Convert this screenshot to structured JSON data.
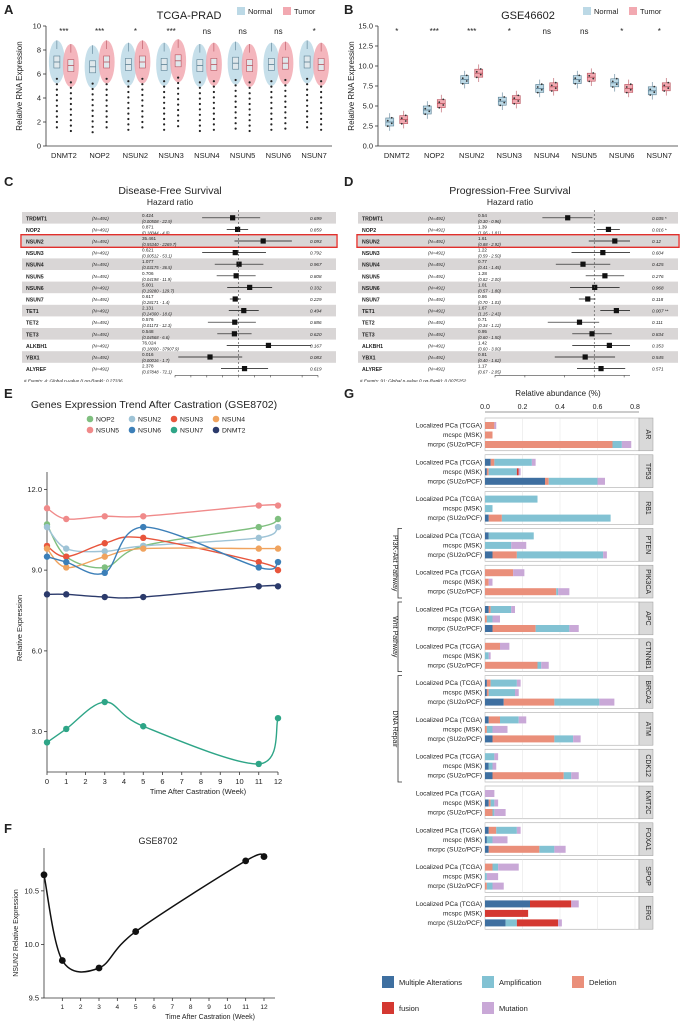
{
  "panel_labels": {
    "a": "A",
    "b": "B",
    "c": "C",
    "d": "D",
    "e": "E",
    "f": "F",
    "g": "G"
  },
  "chart_data": [
    {
      "id": "A",
      "type": "box",
      "title": "TCGA-PRAD",
      "ylabel": "Relative RNA Expression",
      "ylim": [
        0,
        10
      ],
      "yticks": [
        0,
        2,
        4,
        6,
        8,
        10
      ],
      "legend": [
        "Normal",
        "Tumor"
      ],
      "categories": [
        "DNMT2",
        "NOP2",
        "NSUN2",
        "NSUN3",
        "NSUN4",
        "NSUN5",
        "NSUN6",
        "NSUN7"
      ],
      "significance": [
        "***",
        "***",
        "*",
        "***",
        "ns",
        "ns",
        "ns",
        "*"
      ],
      "series": [
        {
          "name": "Normal",
          "medians": [
            7.0,
            6.6,
            6.8,
            6.8,
            6.7,
            6.9,
            6.8,
            7.0
          ]
        },
        {
          "name": "Tumor",
          "medians": [
            6.7,
            7.0,
            7.0,
            7.1,
            6.8,
            6.7,
            6.9,
            6.8
          ]
        }
      ]
    },
    {
      "id": "B",
      "type": "box",
      "title": "GSE46602",
      "ylabel": "Relative RNA Expression",
      "ylim": [
        0,
        15
      ],
      "yticks": [
        "0.0",
        "2.5",
        "5.0",
        "7.5",
        "10.0",
        "12.5",
        "15.0"
      ],
      "legend": [
        "Normal",
        "Tumor"
      ],
      "categories": [
        "DNMT2",
        "NOP2",
        "NSUN2",
        "NSUN3",
        "NSUN4",
        "NSUN5",
        "NSUN6",
        "NSUN7"
      ],
      "significance": [
        "*",
        "***",
        "***",
        "*",
        "ns",
        "ns",
        "*",
        "*"
      ],
      "series": [
        {
          "name": "Normal",
          "medians": [
            3.0,
            4.5,
            8.3,
            5.6,
            7.2,
            8.3,
            7.9,
            6.9
          ]
        },
        {
          "name": "Tumor",
          "medians": [
            3.3,
            5.3,
            9.1,
            5.8,
            7.4,
            8.6,
            7.2,
            7.4
          ]
        }
      ]
    },
    {
      "id": "C",
      "type": "forest",
      "title": "Disease-Free Survival",
      "subtitle": "Hazard ratio",
      "xscale": "log",
      "xticks": [
        "0.0001",
        "0.001",
        "0.01",
        "0.1",
        "1",
        "10",
        "100",
        "10000",
        "100000"
      ],
      "rows": [
        {
          "gene": "TRDMT1",
          "n": "(N=491)",
          "hr": "0.424",
          "ci": "(0.00508 - 22.9)",
          "p": "0.699",
          "est": 0.424
        },
        {
          "gene": "NOP2",
          "n": "(N=491)",
          "hr": "0.871",
          "ci": "(0.18044 - 4.0)",
          "p": "0.859",
          "est": 0.871
        },
        {
          "gene": "NSUN2",
          "n": "(N=491)",
          "hr": "35.461",
          "ci": "(0.55340 - 2269.7)",
          "p": "0.093",
          "est": 35.461
        },
        {
          "gene": "NSUN3",
          "n": "(N=491)",
          "hr": "0.621",
          "ci": "(0.00512 - 53.1)",
          "p": "0.792",
          "est": 0.621
        },
        {
          "gene": "NSUN4",
          "n": "(N=491)",
          "hr": "1.077",
          "ci": "(0.03175 - 36.5)",
          "p": "0.967",
          "est": 1.077
        },
        {
          "gene": "NSUN5",
          "n": "(N=491)",
          "hr": "0.706",
          "ci": "(0.04198 - 11.9)",
          "p": "0.808",
          "est": 0.706
        },
        {
          "gene": "NSUN6",
          "n": "(N=491)",
          "hr": "5.001",
          "ci": "(0.19280 - 129.7)",
          "p": "0.332",
          "est": 5.001
        },
        {
          "gene": "NSUN7",
          "n": "(N=491)",
          "hr": "0.617",
          "ci": "(0.28171 - 1.4)",
          "p": "0.229",
          "est": 0.617
        },
        {
          "gene": "TET1",
          "n": "(N=491)",
          "hr": "2.131",
          "ci": "(0.24300 - 18.6)",
          "p": "0.494",
          "est": 2.131
        },
        {
          "gene": "TET2",
          "n": "(N=491)",
          "hr": "0.576",
          "ci": "(0.01173 - 12.3)",
          "p": "0.886",
          "est": 0.576
        },
        {
          "gene": "TET3",
          "n": "(N=491)",
          "hr": "0.548",
          "ci": "(0.04568 - 6.6)",
          "p": "0.620",
          "est": 0.548
        },
        {
          "gene": "ALKBH1",
          "n": "(N=491)",
          "hr": "76.024",
          "ci": "(0.18000 - 37907.9)",
          "p": "0.167",
          "est": 76.024
        },
        {
          "gene": "YBX1",
          "n": "(N=491)",
          "hr": "0.016",
          "ci": "(0.00016 - 1.7)",
          "p": "0.083",
          "est": 0.016
        },
        {
          "gene": "ALYREF",
          "n": "(N=491)",
          "hr": "2.378",
          "ci": "(0.07848 - 72.1)",
          "p": "0.619",
          "est": 2.378
        }
      ],
      "footnote1": "# Events: 4; Global p-value (Log-Rank): 0.27336",
      "footnote2": "AIC: 53.62; Concordance Index: 0.82"
    },
    {
      "id": "D",
      "type": "forest",
      "title": "Progression-Free Survival",
      "subtitle": "Hazard ratio",
      "xscale": "log",
      "xticks": [
        "0.1",
        "0.2",
        "0.5",
        "1",
        "2"
      ],
      "rows": [
        {
          "gene": "TRDMT1",
          "n": "(N=491)",
          "hr": "0.54",
          "ci": "(0.30 - 0.96)",
          "p": "0.035 *",
          "est": 0.54
        },
        {
          "gene": "NOP2",
          "n": "(N=491)",
          "hr": "1.39",
          "ci": "(1.06 - 1.81)",
          "p": "0.016 *",
          "est": 1.39
        },
        {
          "gene": "NSUN2",
          "n": "(N=491)",
          "hr": "1.61",
          "ci": "(0.88 - 2.92)",
          "p": "0.12",
          "est": 1.61
        },
        {
          "gene": "NSUN3",
          "n": "(N=491)",
          "hr": "1.22",
          "ci": "(0.59 - 2.50)",
          "p": "0.604",
          "est": 1.22
        },
        {
          "gene": "NSUN4",
          "n": "(N=491)",
          "hr": "0.77",
          "ci": "(0.41 - 1.45)",
          "p": "0.425",
          "est": 0.77
        },
        {
          "gene": "NSUN5",
          "n": "(N=491)",
          "hr": "1.28",
          "ci": "(0.82 - 2.00)",
          "p": "0.276",
          "est": 1.28
        },
        {
          "gene": "NSUN6",
          "n": "(N=491)",
          "hr": "1.01",
          "ci": "(0.57 - 1.80)",
          "p": "0.968",
          "est": 1.01
        },
        {
          "gene": "NSUN7",
          "n": "(N=491)",
          "hr": "0.86",
          "ci": "(0.70 - 1.03)",
          "p": "0.118",
          "est": 0.86
        },
        {
          "gene": "TET1",
          "n": "(N=491)",
          "hr": "1.67",
          "ci": "(1.15 - 2.43)",
          "p": "0.007 **",
          "est": 1.67
        },
        {
          "gene": "TET2",
          "n": "(N=491)",
          "hr": "0.71",
          "ci": "(0.34 - 1.12)",
          "p": "0.111",
          "est": 0.71
        },
        {
          "gene": "TET3",
          "n": "(N=491)",
          "hr": "0.95",
          "ci": "(0.60 - 1.50)",
          "p": "0.834",
          "est": 0.95
        },
        {
          "gene": "ALKBH1",
          "n": "(N=491)",
          "hr": "1.42",
          "ci": "(0.60 - 3.00)",
          "p": "0.353",
          "est": 1.42
        },
        {
          "gene": "YBX1",
          "n": "(N=491)",
          "hr": "0.81",
          "ci": "(0.40 - 1.62)",
          "p": "0.545",
          "est": 0.81
        },
        {
          "gene": "ALYREF",
          "n": "(N=491)",
          "hr": "1.17",
          "ci": "(0.67 - 2.05)",
          "p": "0.571",
          "est": 1.17
        }
      ],
      "footnote1": "# Events: 91; Global p-value (Log-Rank): 0.0075252",
      "footnote2": "AIC: 998.43; Concordance Index: 0.67"
    },
    {
      "id": "E",
      "type": "line",
      "title": "Genes Expression Trend After Castration (GSE8702)",
      "xlabel": "Time After Castration (Week)",
      "ylabel": "Relative Expression",
      "x": [
        0,
        1,
        3,
        5,
        11,
        12
      ],
      "xticks": [
        "0",
        "1",
        "2",
        "3",
        "4",
        "5",
        "6",
        "7",
        "8",
        "9",
        "10",
        "11",
        "12"
      ],
      "yticks": [
        "3.0",
        "6.0",
        "9.0",
        "12.0"
      ],
      "ylim": [
        1.5,
        12.2
      ],
      "series": [
        {
          "name": "NOP2",
          "color": "#7fbf7f",
          "values": [
            10.7,
            9.5,
            9.1,
            9.9,
            10.6,
            10.9
          ]
        },
        {
          "name": "NSUN2",
          "color": "#9ec3d6",
          "values": [
            10.6,
            9.8,
            9.7,
            9.9,
            10.2,
            10.6
          ]
        },
        {
          "name": "NSUN3",
          "color": "#e8553c",
          "values": [
            9.9,
            9.5,
            10.0,
            10.2,
            9.3,
            9.0
          ]
        },
        {
          "name": "NSUN4",
          "color": "#f0a35e",
          "values": [
            9.8,
            9.1,
            9.5,
            9.8,
            9.8,
            9.8
          ]
        },
        {
          "name": "NSUN5",
          "color": "#f08a8a",
          "values": [
            11.3,
            10.9,
            11.0,
            11.0,
            11.4,
            11.4
          ]
        },
        {
          "name": "NSUN6",
          "color": "#3c7fb8",
          "values": [
            9.5,
            9.3,
            8.9,
            10.6,
            9.1,
            9.3
          ]
        },
        {
          "name": "NSUN7",
          "color": "#2ea587",
          "values": [
            2.6,
            3.1,
            4.1,
            3.2,
            1.8,
            3.5
          ]
        },
        {
          "name": "DNMT2",
          "color": "#2b3a6b",
          "values": [
            8.1,
            8.1,
            8.0,
            8.0,
            8.4,
            8.4
          ]
        }
      ]
    },
    {
      "id": "F",
      "type": "line",
      "title": "GSE8702",
      "xlabel": "Time After Castration (Week)",
      "ylabel": "NSUN2 Relative Expression",
      "x": [
        0,
        1,
        3,
        5,
        11,
        12
      ],
      "xticks": [
        "1",
        "2",
        "3",
        "4",
        "5",
        "6",
        "7",
        "8",
        "9",
        "10",
        "11",
        "12"
      ],
      "yticks": [
        "9.5",
        "10.0",
        "10.5"
      ],
      "ylim": [
        9.5,
        10.9
      ],
      "values": [
        10.65,
        9.85,
        9.78,
        10.12,
        10.78,
        10.82
      ]
    },
    {
      "id": "G",
      "type": "stacked-bar",
      "title": "Relative abundance (%)",
      "xticks": [
        "0.0",
        "0.2",
        "0.4",
        "0.6",
        "0.8"
      ],
      "xlim": [
        0,
        0.8
      ],
      "cohorts": [
        "Localized PCa (TCGA)",
        "mcspc (MSK)",
        "mcrpc (SU2c/PCF)"
      ],
      "groups": [
        {
          "gene": "AR",
          "data": [
            [
              0,
              0,
              0.05,
              0,
              0.01
            ],
            [
              0,
              0,
              0.04,
              0,
              0
            ],
            [
              0,
              0.05,
              0.68,
              0,
              0.05
            ]
          ]
        },
        {
          "gene": "TP53",
          "data": [
            [
              0.03,
              0.2,
              0.02,
              0,
              0.02
            ],
            [
              0.01,
              0.15,
              0.01,
              0.01,
              0.01
            ],
            [
              0.32,
              0.26,
              0.02,
              0,
              0.04
            ]
          ]
        },
        {
          "gene": "RB1",
          "data": [
            [
              0,
              0.28,
              0,
              0,
              0
            ],
            [
              0,
              0.04,
              0,
              0,
              0
            ],
            [
              0.02,
              0.58,
              0.07,
              0,
              0
            ]
          ]
        },
        {
          "gene": "PTEN",
          "data": [
            [
              0.02,
              0.24,
              0,
              0,
              0
            ],
            [
              0,
              0.14,
              0,
              0,
              0.08
            ],
            [
              0.04,
              0.46,
              0.13,
              0,
              0.02
            ]
          ]
        },
        {
          "gene": "PIK3CA",
          "data": [
            [
              0,
              0,
              0.15,
              0,
              0.06
            ],
            [
              0,
              0,
              0.02,
              0,
              0.02
            ],
            [
              0,
              0.01,
              0.38,
              0,
              0.06
            ]
          ]
        },
        {
          "gene": "APC",
          "data": [
            [
              0.02,
              0.11,
              0.01,
              0,
              0.02
            ],
            [
              0,
              0.03,
              0.01,
              0,
              0.04
            ],
            [
              0.04,
              0.18,
              0.23,
              0,
              0.05
            ]
          ]
        },
        {
          "gene": "CTNNB1",
          "data": [
            [
              0,
              0,
              0.08,
              0,
              0.05
            ],
            [
              0,
              0.02,
              0,
              0,
              0.01
            ],
            [
              0,
              0.02,
              0.28,
              0,
              0.04
            ]
          ]
        },
        {
          "gene": "BRCA2",
          "data": [
            [
              0.01,
              0.14,
              0.02,
              0,
              0.02
            ],
            [
              0.01,
              0.14,
              0.01,
              0,
              0.02
            ],
            [
              0.1,
              0.24,
              0.27,
              0,
              0.08
            ]
          ]
        },
        {
          "gene": "ATM",
          "data": [
            [
              0.02,
              0.1,
              0.06,
              0,
              0.04
            ],
            [
              0,
              0.03,
              0.01,
              0,
              0.08
            ],
            [
              0.04,
              0.1,
              0.33,
              0,
              0.04
            ]
          ]
        },
        {
          "gene": "CDK12",
          "data": [
            [
              0,
              0.05,
              0,
              0,
              0.02
            ],
            [
              0.02,
              0.02,
              0,
              0,
              0.02
            ],
            [
              0.04,
              0.04,
              0.38,
              0,
              0.04
            ]
          ]
        },
        {
          "gene": "KMT2C",
          "data": [
            [
              0,
              0,
              0,
              0,
              0.05
            ],
            [
              0.02,
              0.02,
              0.01,
              0,
              0.02
            ],
            [
              0,
              0.01,
              0.04,
              0,
              0.06
            ]
          ]
        },
        {
          "gene": "FOXA1",
          "data": [
            [
              0.02,
              0.11,
              0.04,
              0,
              0.02
            ],
            [
              0.01,
              0.03,
              0,
              0,
              0.08
            ],
            [
              0.02,
              0.08,
              0.27,
              0,
              0.06
            ]
          ]
        },
        {
          "gene": "SPOP",
          "data": [
            [
              0,
              0.03,
              0.04,
              0,
              0.11
            ],
            [
              0,
              0.01,
              0,
              0,
              0.06
            ],
            [
              0,
              0.03,
              0.01,
              0,
              0.06
            ]
          ]
        },
        {
          "gene": "ERG",
          "data": [
            [
              0.24,
              0,
              0,
              0.22,
              0.04
            ],
            [
              0,
              0,
              0,
              0.23,
              0
            ],
            [
              0.11,
              0.06,
              0,
              0.22,
              0.02
            ]
          ]
        }
      ],
      "pathways": [
        {
          "label": "PI3K-Akt Pathway",
          "genes": [
            "PTEN",
            "PIK3CA"
          ]
        },
        {
          "label": "Wnt Pathway",
          "genes": [
            "APC",
            "CTNNB1"
          ]
        },
        {
          "label": "DNA Repair",
          "genes": [
            "BRCA2",
            "ATM",
            "CDK12"
          ]
        }
      ],
      "legend": [
        {
          "name": "Multiple Alterations",
          "color": "#3e6fa0"
        },
        {
          "name": "Amplification",
          "color": "#82c2d3"
        },
        {
          "name": "Deletion",
          "color": "#ea8f7a"
        },
        {
          "name": "fusion",
          "color": "#d43831"
        },
        {
          "name": "Mutation",
          "color": "#c9a8d7"
        }
      ],
      "segment_order": [
        "Multiple Alterations",
        "Deletion",
        "Amplification",
        "fusion",
        "Mutation"
      ]
    }
  ]
}
